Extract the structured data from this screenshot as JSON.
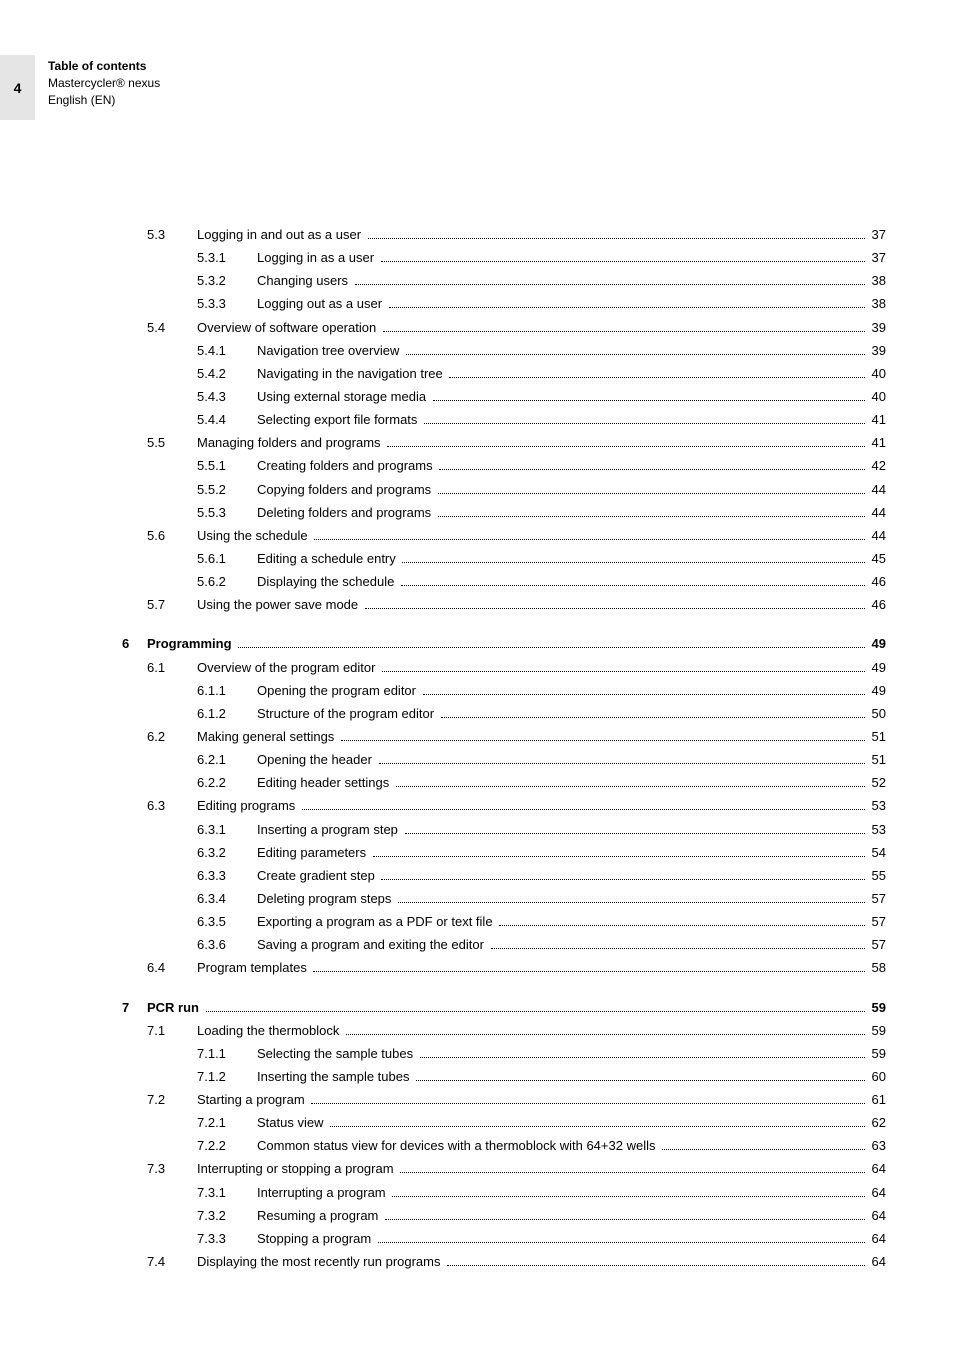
{
  "page_number": "4",
  "header": {
    "title": "Table of contents",
    "line2": "Mastercycler® nexus",
    "line3": "English (EN)"
  },
  "typography": {
    "body_font_size_pt": 13,
    "header_font_size_pt": 12,
    "page_tab_bg": "#e5e5e5",
    "text_color": "#000000",
    "background": "#ffffff"
  },
  "toc": [
    {
      "level": "sec",
      "num": "5.3",
      "title": "Logging in and out as a user",
      "page": "37"
    },
    {
      "level": "sub",
      "num": "5.3.1",
      "title": "Logging in as a user",
      "page": "37"
    },
    {
      "level": "sub",
      "num": "5.3.2",
      "title": "Changing users",
      "page": "38"
    },
    {
      "level": "sub",
      "num": "5.3.3",
      "title": "Logging out as a user",
      "page": "38"
    },
    {
      "level": "sec",
      "num": "5.4",
      "title": "Overview of software operation",
      "page": "39"
    },
    {
      "level": "sub",
      "num": "5.4.1",
      "title": "Navigation tree overview",
      "page": "39"
    },
    {
      "level": "sub",
      "num": "5.4.2",
      "title": "Navigating in the navigation tree",
      "page": "40"
    },
    {
      "level": "sub",
      "num": "5.4.3",
      "title": "Using external storage media",
      "page": "40"
    },
    {
      "level": "sub",
      "num": "5.4.4",
      "title": "Selecting export file formats",
      "page": "41"
    },
    {
      "level": "sec",
      "num": "5.5",
      "title": "Managing folders and programs",
      "page": "41"
    },
    {
      "level": "sub",
      "num": "5.5.1",
      "title": "Creating folders and programs",
      "page": "42"
    },
    {
      "level": "sub",
      "num": "5.5.2",
      "title": "Copying folders and programs",
      "page": "44"
    },
    {
      "level": "sub",
      "num": "5.5.3",
      "title": "Deleting folders and programs",
      "page": "44"
    },
    {
      "level": "sec",
      "num": "5.6",
      "title": "Using the schedule",
      "page": "44"
    },
    {
      "level": "sub",
      "num": "5.6.1",
      "title": "Editing a schedule entry",
      "page": "45"
    },
    {
      "level": "sub",
      "num": "5.6.2",
      "title": "Displaying the schedule",
      "page": "46"
    },
    {
      "level": "sec",
      "num": "5.7",
      "title": "Using the power save mode",
      "page": "46"
    },
    {
      "level": "gap"
    },
    {
      "level": "chap",
      "num": "6",
      "title": "Programming",
      "page": "49"
    },
    {
      "level": "sec",
      "num": "6.1",
      "title": "Overview of the program editor",
      "page": "49"
    },
    {
      "level": "sub",
      "num": "6.1.1",
      "title": "Opening the program editor",
      "page": "49"
    },
    {
      "level": "sub",
      "num": "6.1.2",
      "title": "Structure of the program editor",
      "page": "50"
    },
    {
      "level": "sec",
      "num": "6.2",
      "title": "Making general settings",
      "page": "51"
    },
    {
      "level": "sub",
      "num": "6.2.1",
      "title": "Opening the header",
      "page": "51"
    },
    {
      "level": "sub",
      "num": "6.2.2",
      "title": "Editing header settings",
      "page": "52"
    },
    {
      "level": "sec",
      "num": "6.3",
      "title": "Editing programs",
      "page": "53"
    },
    {
      "level": "sub",
      "num": "6.3.1",
      "title": "Inserting a program step",
      "page": "53"
    },
    {
      "level": "sub",
      "num": "6.3.2",
      "title": "Editing parameters",
      "page": "54"
    },
    {
      "level": "sub",
      "num": "6.3.3",
      "title": "Create gradient step",
      "page": "55"
    },
    {
      "level": "sub",
      "num": "6.3.4",
      "title": "Deleting program steps",
      "page": "57"
    },
    {
      "level": "sub",
      "num": "6.3.5",
      "title": "Exporting a program as a PDF or text file",
      "page": "57"
    },
    {
      "level": "sub",
      "num": "6.3.6",
      "title": "Saving a program and exiting the editor",
      "page": "57"
    },
    {
      "level": "sec",
      "num": "6.4",
      "title": "Program templates",
      "page": "58"
    },
    {
      "level": "gap"
    },
    {
      "level": "chap",
      "num": "7",
      "title": "PCR run",
      "page": "59"
    },
    {
      "level": "sec",
      "num": "7.1",
      "title": "Loading the thermoblock",
      "page": "59"
    },
    {
      "level": "sub",
      "num": "7.1.1",
      "title": "Selecting the sample tubes",
      "page": "59"
    },
    {
      "level": "sub",
      "num": "7.1.2",
      "title": "Inserting the sample tubes",
      "page": "60"
    },
    {
      "level": "sec",
      "num": "7.2",
      "title": "Starting a program",
      "page": "61"
    },
    {
      "level": "sub",
      "num": "7.2.1",
      "title": "Status view",
      "page": "62"
    },
    {
      "level": "sub",
      "num": "7.2.2",
      "title": "Common status view for devices with a thermoblock with 64+32 wells",
      "page": "63"
    },
    {
      "level": "sec",
      "num": "7.3",
      "title": "Interrupting or stopping a program",
      "page": "64"
    },
    {
      "level": "sub",
      "num": "7.3.1",
      "title": "Interrupting a program",
      "page": "64"
    },
    {
      "level": "sub",
      "num": "7.3.2",
      "title": "Resuming a program",
      "page": "64"
    },
    {
      "level": "sub",
      "num": "7.3.3",
      "title": "Stopping a program",
      "page": "64"
    },
    {
      "level": "sec",
      "num": "7.4",
      "title": "Displaying the most recently run programs",
      "page": "64"
    }
  ]
}
